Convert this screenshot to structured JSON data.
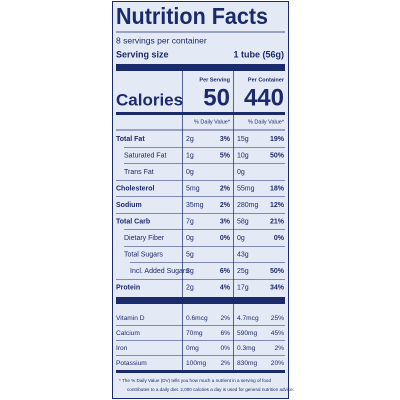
{
  "header": {
    "title": "Nutrition Facts",
    "servings": "8 servings per container",
    "serving_size_label": "Serving size",
    "serving_size": "1 tube (56g)"
  },
  "columns": {
    "per_serving": "Per Serving",
    "per_container": "Per Container",
    "daily_value_serving": "% Daily Value*",
    "daily_value_container": "% Daily Value*"
  },
  "calories": {
    "label": "Calories",
    "per_serving": "50",
    "per_container": "440"
  },
  "nutrients": [
    {
      "label": "Total Fat",
      "serving_amount": "2g",
      "serving_dv": "3%",
      "container_amount": "15g",
      "container_dv": "19%"
    },
    {
      "label": "Saturated Fat",
      "serving_amount": "1g",
      "serving_dv": "5%",
      "container_amount": "10g",
      "container_dv": "50%"
    },
    {
      "label": "Trans Fat",
      "serving_amount": "0g",
      "serving_dv": null,
      "container_amount": "0g",
      "container_dv": null
    },
    {
      "label": "Cholesterol",
      "serving_amount": "5mg",
      "serving_dv": "2%",
      "container_amount": "55mg",
      "container_dv": "18%"
    },
    {
      "label": "Sodium",
      "serving_amount": "35mg",
      "serving_dv": "2%",
      "container_amount": "280mg",
      "container_dv": "12%"
    },
    {
      "label": "Total Carb",
      "serving_amount": "7g",
      "serving_dv": "3%",
      "container_amount": "58g",
      "container_dv": "21%"
    },
    {
      "label": "Dietary Fiber",
      "serving_amount": "0g",
      "serving_dv": "0%",
      "container_amount": "0g",
      "container_dv": "0%"
    },
    {
      "label": "Total Sugars",
      "serving_amount": "5g",
      "serving_dv": null,
      "container_amount": "43g",
      "container_dv": null
    },
    {
      "label": "Incl. Added Sugars",
      "serving_amount": "3g",
      "serving_dv": "6%",
      "container_amount": "25g",
      "container_dv": "50%"
    },
    {
      "label": "Protein",
      "serving_amount": "2g",
      "serving_dv": "4%",
      "container_amount": "17g",
      "container_dv": "34%"
    }
  ],
  "vitamins": [
    {
      "label": "Vitamin D",
      "serving_amount": "0.6mcg",
      "serving_dv": "2%",
      "container_amount": "4.7mcg",
      "container_dv": "25%"
    },
    {
      "label": "Calcium",
      "serving_amount": "70mg",
      "serving_dv": "6%",
      "container_amount": "590mg",
      "container_dv": "45%"
    },
    {
      "label": "Iron",
      "serving_amount": "0mg",
      "serving_dv": "0%",
      "container_amount": "0.3mg",
      "container_dv": "2%"
    },
    {
      "label": "Potassium",
      "serving_amount": "100mg",
      "serving_dv": "2%",
      "container_amount": "830mg",
      "container_dv": "20%"
    }
  ],
  "footnote": [
    "* The % Daily Value (DV) tells you how much a nutrient in a serving of food",
    "contributes to a daily diet. 2,000 calories a day is used for general nutrition advice."
  ]
}
